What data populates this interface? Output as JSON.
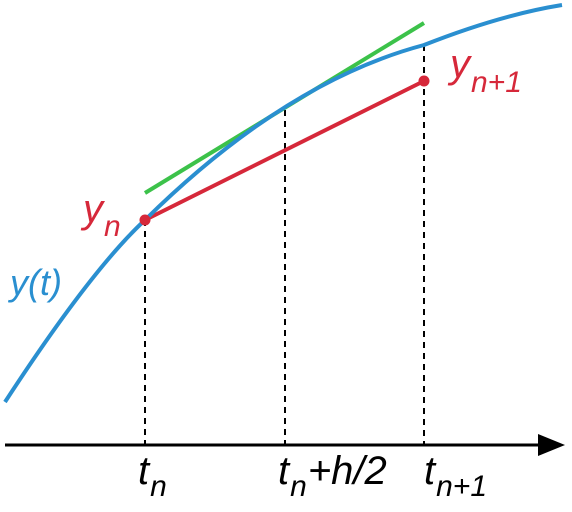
{
  "colors": {
    "curve": "#2a8fd0",
    "secant": "#d6283a",
    "tangent": "#3cc24a",
    "axis": "#000000",
    "dashed": "#000000"
  },
  "labels": {
    "curve": "y(t)",
    "y_n": {
      "base": "y",
      "sub": "n"
    },
    "y_n1": {
      "base": "y",
      "sub": "n+1"
    },
    "t_n": {
      "base": "t",
      "sub": "n"
    },
    "t_mid": {
      "base": "t",
      "sub": "n",
      "rest": "+h/2"
    },
    "t_n1": {
      "base": "t",
      "sub": "n+1"
    }
  }
}
